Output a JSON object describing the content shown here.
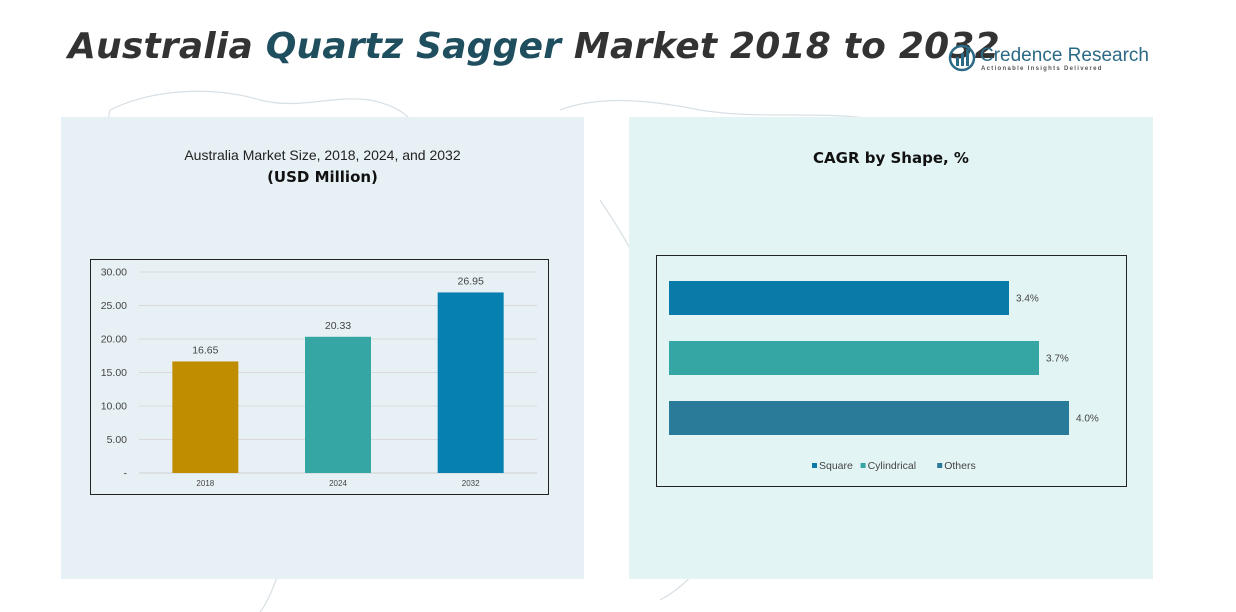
{
  "header": {
    "title_part1": "Australia ",
    "title_part2": "Quartz Sagger",
    "title_part3": " Market 2018 to 2032"
  },
  "logo": {
    "name": "Credence Research",
    "tagline": "Actionable Insights Delivered"
  },
  "left_panel": {
    "subtitle": "Australia Market Size, 2018, 2024, and 2032",
    "unit": "(USD Million)"
  },
  "right_panel": {
    "title": "CAGR by Shape, %"
  },
  "colors": {
    "bar_2018": "#c08c00",
    "bar_2024": "#35a6a3",
    "bar_2032": "#0580b0",
    "square": "#0a7aa8",
    "cylindrical": "#35a6a3",
    "others": "#2a7b9a"
  },
  "chart_data": [
    {
      "type": "bar",
      "categories": [
        "2018",
        "2024",
        "2032"
      ],
      "values": [
        16.65,
        20.33,
        26.95
      ],
      "value_labels": [
        "16.65",
        "20.33",
        "26.95"
      ],
      "y_ticks": [
        "-",
        "5.00",
        "10.00",
        "15.00",
        "20.00",
        "25.00",
        "30.00"
      ],
      "ylim": [
        0,
        30
      ],
      "grid": true,
      "title": "Australia Market Size, 2018, 2024, and 2032",
      "ylabel": "(USD Million)"
    },
    {
      "type": "bar",
      "orientation": "horizontal",
      "categories": [
        "Square",
        "Cylindrical",
        "Others"
      ],
      "values": [
        3.4,
        3.7,
        4.0
      ],
      "value_labels": [
        "3.4%",
        "3.7%",
        "4.0%"
      ],
      "title": "CAGR by Shape, %",
      "legend": [
        "Square",
        "Cylindrical",
        "Others"
      ],
      "legend_position": "bottom"
    }
  ]
}
